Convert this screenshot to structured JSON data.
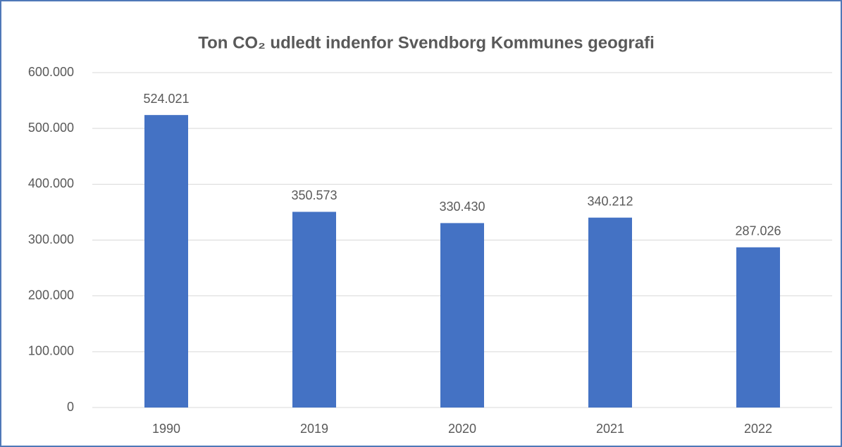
{
  "chart_data": {
    "type": "bar",
    "title": "Ton CO₂ udledt indenfor Svendborg Kommunes geografi",
    "categories": [
      "1990",
      "2019",
      "2020",
      "2021",
      "2022"
    ],
    "values": [
      524021,
      350573,
      330430,
      340212,
      287026
    ],
    "value_labels": [
      "524.021",
      "350.573",
      "330.430",
      "340.212",
      "287.026"
    ],
    "color": "#4472c4",
    "ylim": [
      0,
      600000
    ],
    "yticks": [
      0,
      {
        "value": 100000,
        "label": "100.000"
      },
      {
        "value": 200000,
        "label": "200.000"
      },
      {
        "value": 300000,
        "label": "300.000"
      },
      {
        "value": 400000,
        "label": "400.000"
      },
      {
        "value": 500000,
        "label": "500.000"
      },
      {
        "value": 600000,
        "label": "600.000"
      }
    ],
    "grid": true
  }
}
